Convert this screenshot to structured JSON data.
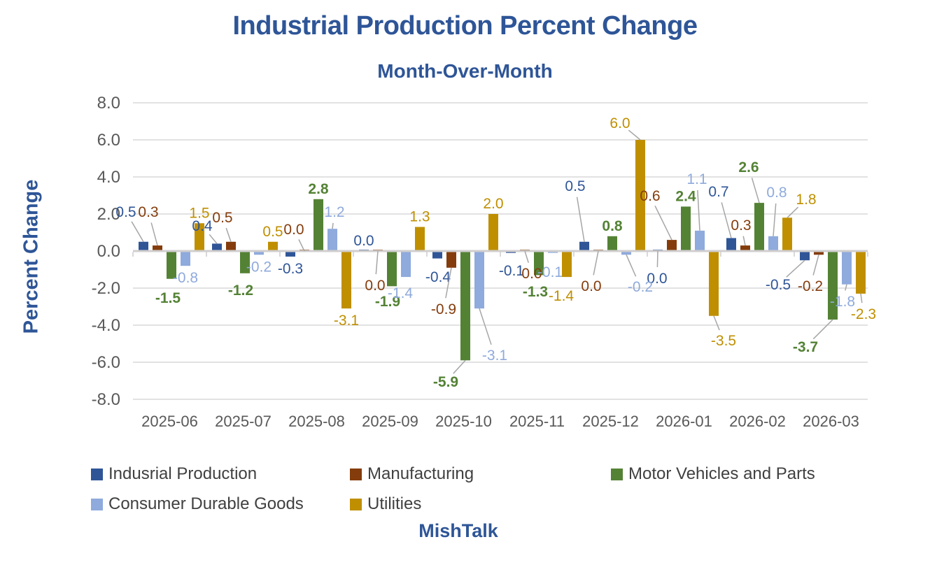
{
  "watermark": "MishTalk",
  "colors": {
    "title": "#2E5597",
    "axis_text": "#595959",
    "gridline": "#D9D9D9",
    "zero_axis_line": "#D0CECE",
    "tick_mark": "#BFBFBF",
    "leader_line": "#A6A6A6",
    "legend_text": "#404040",
    "background": "#FFFFFF"
  },
  "chart_data": {
    "type": "bar",
    "title": "Industrial Production Percent Change",
    "subtitle": "Month-Over-Month",
    "xlabel": "",
    "ylabel": "Percent Change",
    "ylim": [
      -8,
      8
    ],
    "ytick_step": 2,
    "ytick_labels": [
      "8.0",
      "6.0",
      "4.0",
      "2.0",
      "0.0",
      "-2.0",
      "-4.0",
      "-6.0",
      "-8.0"
    ],
    "grid": true,
    "legend_position": "bottom",
    "data_labels": true,
    "label_decimals": 1,
    "categories": [
      "2025-06",
      "2025-07",
      "2025-08",
      "2025-09",
      "2025-10",
      "2025-11",
      "2025-12",
      "2026-01",
      "2026-02",
      "2026-03"
    ],
    "series": [
      {
        "name": "Indusrial Production",
        "color": "#2F5597",
        "values": [
          0.5,
          0.4,
          -0.3,
          0.0,
          -0.4,
          -0.1,
          0.5,
          0.0,
          0.7,
          -0.5
        ]
      },
      {
        "name": "Manufacturing",
        "color": "#843C0C",
        "values": [
          0.3,
          0.5,
          0.0,
          0.0,
          -0.9,
          0.0,
          0.0,
          0.6,
          0.3,
          -0.2
        ]
      },
      {
        "name": "Motor Vehicles and Parts",
        "color": "#548235",
        "bold_labels": true,
        "values": [
          -1.5,
          -1.2,
          2.8,
          -1.9,
          -5.9,
          -1.3,
          0.8,
          2.4,
          2.6,
          -3.7
        ]
      },
      {
        "name": "Consumer Durable Goods",
        "color": "#8FAADC",
        "values": [
          -0.8,
          -0.2,
          1.2,
          -1.4,
          -3.1,
          -0.1,
          -0.2,
          1.1,
          0.8,
          -1.8
        ]
      },
      {
        "name": "Utilities",
        "color": "#BF8F00",
        "values": [
          1.5,
          0.5,
          -3.1,
          1.3,
          2.0,
          -1.4,
          6.0,
          -3.5,
          1.8,
          -2.3
        ]
      }
    ]
  }
}
